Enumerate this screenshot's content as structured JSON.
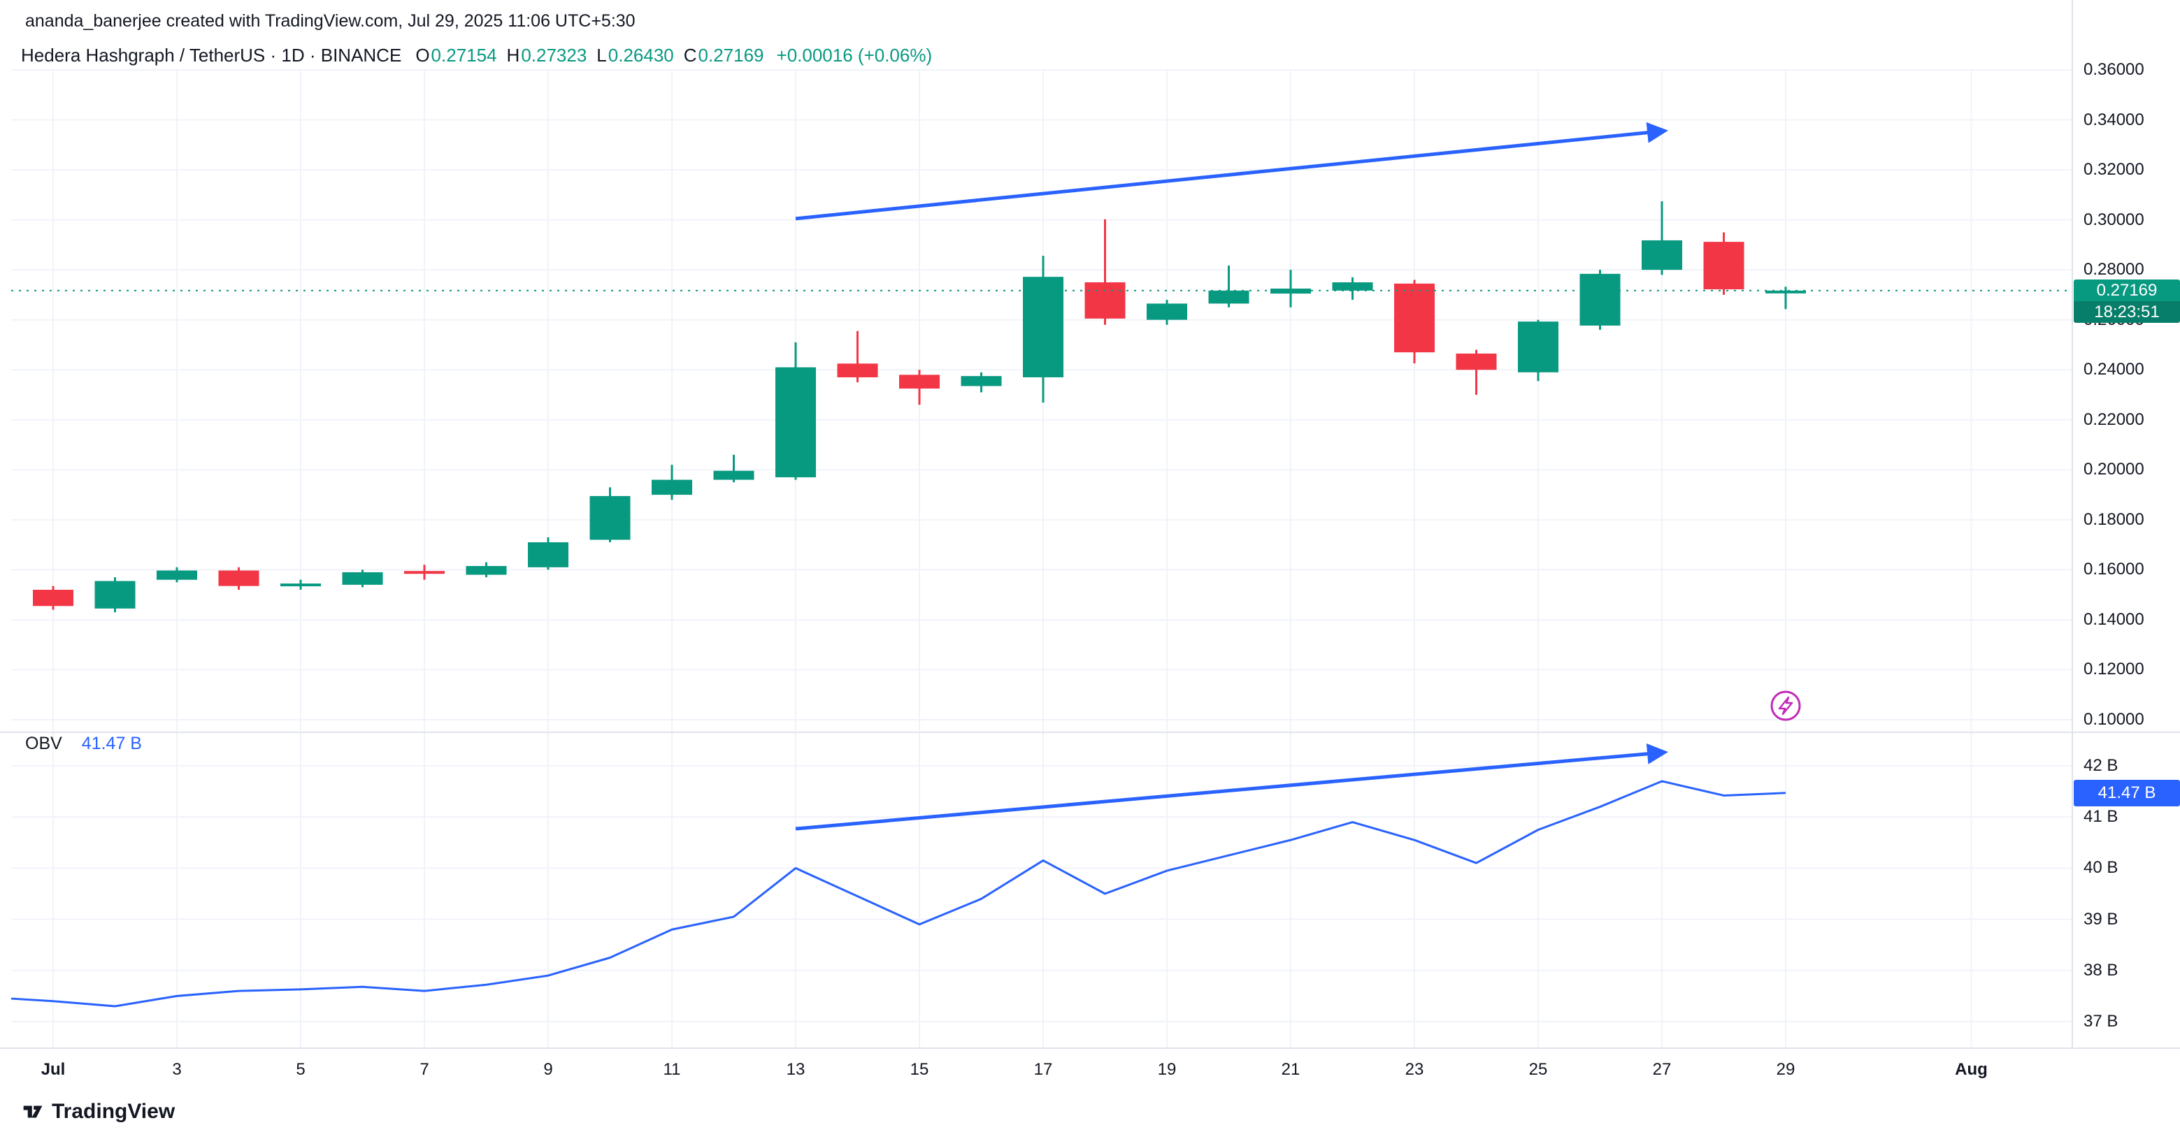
{
  "attribution": "ananda_banerjee created with TradingView.com, Jul 29, 2025 11:06 UTC+5:30",
  "legend": {
    "symbol": "Hedera Hashgraph / TetherUS · 1D · BINANCE",
    "open_label": "O",
    "open": "0.27154",
    "high_label": "H",
    "high": "0.27323",
    "low_label": "L",
    "low": "0.26430",
    "close_label": "C",
    "close": "0.27169",
    "change": "+0.00016 (+0.06%)"
  },
  "price_scale": {
    "labels": [
      "0.36000",
      "0.34000",
      "0.32000",
      "0.30000",
      "0.28000",
      "0.26000",
      "0.24000",
      "0.22000",
      "0.20000",
      "0.18000",
      "0.16000",
      "0.14000",
      "0.12000",
      "0.10000"
    ],
    "values": [
      0.36,
      0.34,
      0.32,
      0.3,
      0.28,
      0.26,
      0.24,
      0.22,
      0.2,
      0.18,
      0.16,
      0.14,
      0.12,
      0.1
    ],
    "current_price": "0.27169",
    "countdown": "18:23:51"
  },
  "obv": {
    "label": "OBV",
    "value": "41.47 B",
    "badge": "41.47 B",
    "scale_labels": [
      "42 B",
      "41 B",
      "40 B",
      "39 B",
      "38 B",
      "37 B"
    ],
    "scale_values": [
      42,
      41,
      40,
      39,
      38,
      37
    ]
  },
  "time_axis": {
    "labels": [
      {
        "text": "Jul",
        "day": 1,
        "bold": true
      },
      {
        "text": "3",
        "day": 3,
        "bold": false
      },
      {
        "text": "5",
        "day": 5,
        "bold": false
      },
      {
        "text": "7",
        "day": 7,
        "bold": false
      },
      {
        "text": "9",
        "day": 9,
        "bold": false
      },
      {
        "text": "11",
        "day": 11,
        "bold": false
      },
      {
        "text": "13",
        "day": 13,
        "bold": false
      },
      {
        "text": "15",
        "day": 15,
        "bold": false
      },
      {
        "text": "17",
        "day": 17,
        "bold": false
      },
      {
        "text": "19",
        "day": 19,
        "bold": false
      },
      {
        "text": "21",
        "day": 21,
        "bold": false
      },
      {
        "text": "23",
        "day": 23,
        "bold": false
      },
      {
        "text": "25",
        "day": 25,
        "bold": false
      },
      {
        "text": "27",
        "day": 27,
        "bold": false
      },
      {
        "text": "29",
        "day": 29,
        "bold": false
      },
      {
        "text": "Aug",
        "day": 32,
        "bold": true
      }
    ]
  },
  "footer": {
    "logo_text": "TradingView"
  },
  "colors": {
    "up": "#089981",
    "down": "#f23645",
    "accent": "#2962ff",
    "grid": "#f0f3fa",
    "separator": "#e0e3eb",
    "text": "#131722",
    "purple": "#c22ab8"
  },
  "chart_data": [
    {
      "type": "candlestick",
      "title": "Hedera Hashgraph / TetherUS, 1D, BINANCE",
      "x_unit": "day of July 2025",
      "x": [
        1,
        2,
        3,
        4,
        5,
        6,
        7,
        8,
        9,
        10,
        11,
        12,
        13,
        14,
        15,
        16,
        17,
        18,
        19,
        20,
        21,
        22,
        23,
        24,
        25,
        26,
        27,
        28,
        29
      ],
      "ohlc": [
        [
          0.152,
          0.1535,
          0.144,
          0.1455
        ],
        [
          0.1445,
          0.157,
          0.143,
          0.1555
        ],
        [
          0.156,
          0.161,
          0.155,
          0.1597
        ],
        [
          0.1597,
          0.161,
          0.152,
          0.1535
        ],
        [
          0.1535,
          0.156,
          0.152,
          0.1545
        ],
        [
          0.154,
          0.16,
          0.153,
          0.159
        ],
        [
          0.1595,
          0.162,
          0.156,
          0.1585
        ],
        [
          0.158,
          0.163,
          0.157,
          0.1615
        ],
        [
          0.161,
          0.173,
          0.16,
          0.171
        ],
        [
          0.172,
          0.193,
          0.171,
          0.1895
        ],
        [
          0.19,
          0.202,
          0.188,
          0.196
        ],
        [
          0.196,
          0.206,
          0.195,
          0.1996
        ],
        [
          0.197,
          0.251,
          0.196,
          0.241
        ],
        [
          0.2425,
          0.2555,
          0.235,
          0.237
        ],
        [
          0.238,
          0.24,
          0.226,
          0.2325
        ],
        [
          0.2335,
          0.239,
          0.231,
          0.2375
        ],
        [
          0.237,
          0.2856,
          0.2269,
          0.2772
        ],
        [
          0.275,
          0.3002,
          0.258,
          0.2605
        ],
        [
          0.26,
          0.268,
          0.258,
          0.2665
        ],
        [
          0.2665,
          0.2817,
          0.265,
          0.2717
        ],
        [
          0.2705,
          0.28,
          0.265,
          0.2725
        ],
        [
          0.2717,
          0.277,
          0.268,
          0.275
        ],
        [
          0.2745,
          0.276,
          0.2426,
          0.247
        ],
        [
          0.2465,
          0.248,
          0.23,
          0.24
        ],
        [
          0.239,
          0.26,
          0.2355,
          0.2593
        ],
        [
          0.2577,
          0.28,
          0.256,
          0.2784
        ],
        [
          0.28,
          0.3074,
          0.278,
          0.2918
        ],
        [
          0.2912,
          0.295,
          0.27,
          0.2722
        ],
        [
          0.27154,
          0.27323,
          0.2643,
          0.27169
        ]
      ],
      "ylim": [
        0.1,
        0.36
      ],
      "current_price": 0.27169,
      "annotations": [
        {
          "type": "trend-arrow",
          "from": [
            13,
            0.3005
          ],
          "to": [
            27,
            0.3355
          ]
        }
      ]
    },
    {
      "type": "line",
      "title": "OBV",
      "x_unit": "day of July 2025 (0 = Jun 30)",
      "x": [
        0,
        1,
        2,
        3,
        4,
        5,
        6,
        7,
        8,
        9,
        10,
        11,
        12,
        13,
        14,
        15,
        16,
        17,
        18,
        19,
        20,
        21,
        22,
        23,
        24,
        25,
        26,
        27,
        28,
        29
      ],
      "values": [
        37.45,
        37.4,
        37.3,
        37.5,
        37.6,
        37.63,
        37.68,
        37.6,
        37.72,
        37.9,
        38.25,
        38.8,
        39.05,
        40.0,
        39.45,
        38.9,
        39.4,
        40.15,
        39.5,
        39.95,
        40.25,
        40.55,
        40.9,
        40.55,
        40.1,
        40.75,
        41.2,
        41.7,
        41.42,
        41.47
      ],
      "ylim": [
        37,
        42
      ],
      "annotations": [
        {
          "type": "trend-arrow",
          "from": [
            13,
            40.77
          ],
          "to": [
            27,
            42.26
          ]
        }
      ]
    }
  ]
}
